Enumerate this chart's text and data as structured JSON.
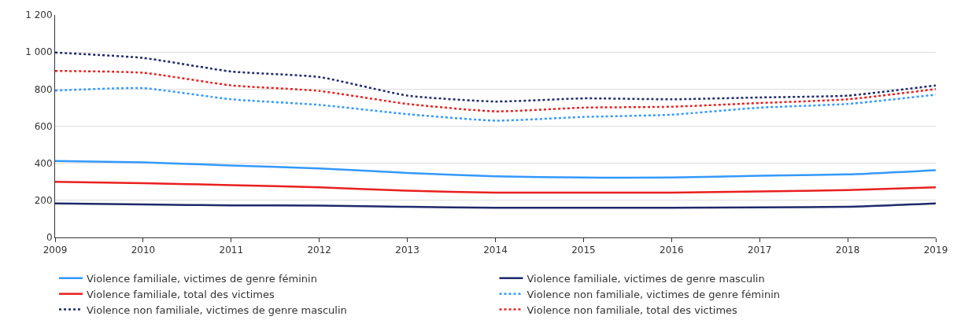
{
  "chart_data": {
    "type": "line",
    "categories": [
      "2009",
      "2010",
      "2011",
      "2012",
      "2013",
      "2014",
      "2015",
      "2016",
      "2017",
      "2018",
      "2019"
    ],
    "series": [
      {
        "name": "Violence familiale, victimes de genre féminin",
        "color": "#3399ff",
        "line_style": "solid",
        "values": [
          412,
          405,
          388,
          372,
          348,
          330,
          323,
          323,
          333,
          340,
          363
        ]
      },
      {
        "name": "Violence familiale, victimes de genre masculin",
        "color": "#1f2a6b",
        "line_style": "solid",
        "values": [
          183,
          178,
          173,
          172,
          165,
          160,
          160,
          160,
          162,
          165,
          183
        ]
      },
      {
        "name": "Violence familiale, total des victimes",
        "color": "#e8201f",
        "line_style": "solid",
        "values": [
          300,
          293,
          282,
          270,
          252,
          242,
          242,
          242,
          248,
          255,
          270
        ]
      },
      {
        "name": "Violence non familiale, victimes de genre féminin",
        "color": "#3399ff",
        "line_style": "dotted",
        "values": [
          792,
          805,
          745,
          715,
          665,
          630,
          650,
          662,
          700,
          720,
          770
        ]
      },
      {
        "name": "Violence non familiale, victimes de genre masculin",
        "color": "#1f2a6b",
        "line_style": "dotted",
        "values": [
          997,
          968,
          895,
          865,
          765,
          733,
          750,
          745,
          755,
          765,
          820
        ]
      },
      {
        "name": "Violence non familiale, total des victimes",
        "color": "#e8201f",
        "line_style": "dotted",
        "values": [
          898,
          888,
          820,
          790,
          720,
          680,
          700,
          705,
          725,
          745,
          800
        ]
      }
    ],
    "ylim": [
      0,
      1200
    ],
    "yticks": [
      0,
      200,
      400,
      600,
      800,
      {
        "value": 1000,
        "label": "1 000"
      },
      {
        "value": 1200,
        "label": "1 200"
      }
    ],
    "grid": "y",
    "legend": "bottom",
    "marker": "none"
  }
}
